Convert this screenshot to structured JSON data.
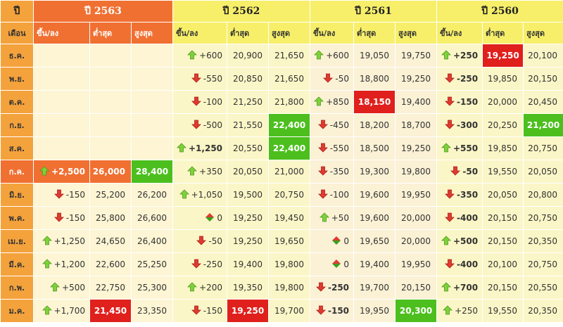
{
  "header": {
    "corner": "ปี",
    "month_col": "เดือน",
    "years": [
      "ปี 2563",
      "ปี 2562",
      "ปี 2561",
      "ปี 2560"
    ],
    "sub": [
      "ขึ้น/ลง",
      "ต่ำสุด",
      "สูงสุด"
    ]
  },
  "colors": {
    "orange": "#f07032",
    "yellow": "#f7ef6a",
    "red": "#e0201c",
    "green": "#4cbf1e"
  },
  "rows": [
    {
      "month": "ธ.ค.",
      "cells": [
        {
          "chg": "",
          "dir": "",
          "low": "",
          "high": ""
        },
        {
          "chg": "+600",
          "dir": "up",
          "low": "20,900",
          "high": "21,650"
        },
        {
          "chg": "+600",
          "dir": "up",
          "low": "19,050",
          "high": "19,750"
        },
        {
          "chg": "+250",
          "dir": "up",
          "bold": true,
          "low": "19,250",
          "high": "20,100",
          "lowHl": "red"
        }
      ]
    },
    {
      "month": "พ.ย.",
      "cells": [
        {
          "chg": "",
          "dir": "",
          "low": "",
          "high": ""
        },
        {
          "chg": "-550",
          "dir": "down",
          "low": "20,850",
          "high": "21,650"
        },
        {
          "chg": "-50",
          "dir": "down",
          "low": "18,800",
          "high": "19,250"
        },
        {
          "chg": "-250",
          "dir": "down",
          "bold": true,
          "low": "19,850",
          "high": "20,150"
        }
      ]
    },
    {
      "month": "ต.ค.",
      "cells": [
        {
          "chg": "",
          "dir": "",
          "low": "",
          "high": ""
        },
        {
          "chg": "-100",
          "dir": "down",
          "low": "21,250",
          "high": "21,800"
        },
        {
          "chg": "+850",
          "dir": "up",
          "low": "18,150",
          "high": "19,400",
          "lowHl": "red"
        },
        {
          "chg": "-150",
          "dir": "down",
          "bold": true,
          "low": "20,000",
          "high": "20,450"
        }
      ]
    },
    {
      "month": "ก.ย.",
      "cells": [
        {
          "chg": "",
          "dir": "",
          "low": "",
          "high": ""
        },
        {
          "chg": "-500",
          "dir": "down",
          "low": "21,550",
          "high": "22,400",
          "highHl": "green"
        },
        {
          "chg": "-450",
          "dir": "down",
          "low": "18,200",
          "high": "18,700"
        },
        {
          "chg": "-300",
          "dir": "down",
          "bold": true,
          "low": "20,250",
          "high": "21,200",
          "highHl": "green"
        }
      ]
    },
    {
      "month": "ส.ค.",
      "cells": [
        {
          "chg": "",
          "dir": "",
          "low": "",
          "high": ""
        },
        {
          "chg": "+1,250",
          "dir": "up",
          "bold": true,
          "low": "20,550",
          "high": "22,400",
          "highHl": "green"
        },
        {
          "chg": "-550",
          "dir": "down",
          "low": "18,500",
          "high": "19,250"
        },
        {
          "chg": "+550",
          "dir": "up",
          "bold": true,
          "low": "19,850",
          "high": "20,750"
        }
      ]
    },
    {
      "month": "ก.ค.",
      "active": true,
      "cells": [
        {
          "chg": "+2,500",
          "dir": "up",
          "bold": true,
          "low": "26,000",
          "high": "28,400",
          "highHl": "green"
        },
        {
          "chg": "+350",
          "dir": "up",
          "low": "20,050",
          "high": "21,000"
        },
        {
          "chg": "-350",
          "dir": "down",
          "low": "19,300",
          "high": "19,800"
        },
        {
          "chg": "-50",
          "dir": "down",
          "bold": true,
          "low": "19,550",
          "high": "20,050"
        }
      ]
    },
    {
      "month": "มิ.ย.",
      "cells": [
        {
          "chg": "-150",
          "dir": "down",
          "low": "25,200",
          "high": "26,200"
        },
        {
          "chg": "+1,050",
          "dir": "up",
          "low": "19,500",
          "high": "20,750"
        },
        {
          "chg": "-100",
          "dir": "down",
          "low": "19,600",
          "high": "19,950"
        },
        {
          "chg": "-350",
          "dir": "down",
          "bold": true,
          "low": "20,050",
          "high": "20,800"
        }
      ]
    },
    {
      "month": "พ.ค.",
      "cells": [
        {
          "chg": "-150",
          "dir": "down",
          "low": "25,800",
          "high": "26,600"
        },
        {
          "chg": "0",
          "dir": "flat",
          "low": "19,250",
          "high": "19,450"
        },
        {
          "chg": "+50",
          "dir": "up",
          "low": "19,600",
          "high": "20,000"
        },
        {
          "chg": "-400",
          "dir": "down",
          "bold": true,
          "low": "20,150",
          "high": "20,750"
        }
      ]
    },
    {
      "month": "เม.ย.",
      "cells": [
        {
          "chg": "+1,250",
          "dir": "up",
          "low": "24,650",
          "high": "26,400"
        },
        {
          "chg": "-50",
          "dir": "down",
          "low": "19,250",
          "high": "19,650"
        },
        {
          "chg": "0",
          "dir": "flat",
          "low": "19,650",
          "high": "20,000"
        },
        {
          "chg": "+500",
          "dir": "up",
          "bold": true,
          "low": "20,150",
          "high": "20,350"
        }
      ]
    },
    {
      "month": "มี.ค.",
      "cells": [
        {
          "chg": "+1,200",
          "dir": "up",
          "low": "22,600",
          "high": "25,250"
        },
        {
          "chg": "-250",
          "dir": "down",
          "low": "19,400",
          "high": "19,800"
        },
        {
          "chg": "0",
          "dir": "flat",
          "low": "19,400",
          "high": "19,950"
        },
        {
          "chg": "-400",
          "dir": "down",
          "bold": true,
          "low": "20,100",
          "high": "20,750"
        }
      ]
    },
    {
      "month": "ก.พ.",
      "cells": [
        {
          "chg": "+500",
          "dir": "up",
          "low": "22,750",
          "high": "25,300"
        },
        {
          "chg": "+200",
          "dir": "up",
          "low": "19,350",
          "high": "19,800"
        },
        {
          "chg": "-250",
          "dir": "down",
          "bold": true,
          "low": "19,700",
          "high": "20,150"
        },
        {
          "chg": "+700",
          "dir": "up",
          "bold": true,
          "low": "20,150",
          "high": "20,550"
        }
      ]
    },
    {
      "month": "ม.ค.",
      "cells": [
        {
          "chg": "+1,700",
          "dir": "up",
          "low": "21,450",
          "high": "23,350",
          "lowHl": "red"
        },
        {
          "chg": "-150",
          "dir": "down",
          "low": "19,250",
          "high": "19,700",
          "lowHl": "red"
        },
        {
          "chg": "-150",
          "dir": "down",
          "bold": true,
          "low": "19,950",
          "high": "20,300",
          "highHl": "green"
        },
        {
          "chg": "+250",
          "dir": "up",
          "low": "19,550",
          "high": "20,350"
        }
      ]
    }
  ]
}
